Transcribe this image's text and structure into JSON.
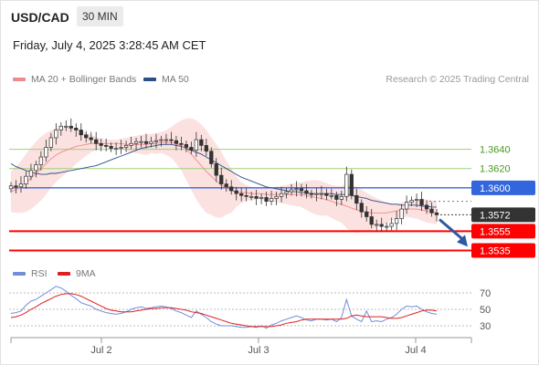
{
  "header": {
    "symbol": "USD/CAD",
    "interval": "30 MIN",
    "datetime": "Friday, July 4, 2025 3:28:45 AM CET",
    "source": "Research © 2025 Trading Central"
  },
  "legend": {
    "items": [
      {
        "label": "MA 20 + Bollinger Bands",
        "color": "#f08a8a"
      },
      {
        "label": "MA 50",
        "color": "#2b4f86"
      }
    ]
  },
  "rsi_legend": {
    "items": [
      {
        "label": "RSI",
        "color": "#6f8fd8"
      },
      {
        "label": "9MA",
        "color": "#e02020"
      }
    ]
  },
  "chart_data": {
    "type": "candlestick",
    "x_ticks": [
      "Jul 2",
      "Jul 3",
      "Jul 4"
    ],
    "price_ylim": [
      1.3525,
      1.3705
    ],
    "closes": [
      1.3602,
      1.3601,
      1.3604,
      1.3612,
      1.3618,
      1.3624,
      1.3632,
      1.3642,
      1.3652,
      1.366,
      1.3664,
      1.3664,
      1.3662,
      1.366,
      1.3655,
      1.3652,
      1.365,
      1.3646,
      1.3644,
      1.3643,
      1.3641,
      1.3641,
      1.3642,
      1.3644,
      1.3646,
      1.3648,
      1.3648,
      1.3646,
      1.3648,
      1.3649,
      1.365,
      1.365,
      1.3649,
      1.3646,
      1.3645,
      1.3642,
      1.3639,
      1.365,
      1.3644,
      1.3638,
      1.3625,
      1.3613,
      1.3604,
      1.3601,
      1.3597,
      1.3594,
      1.3592,
      1.3591,
      1.3591,
      1.3589,
      1.359,
      1.3586,
      1.3589,
      1.3591,
      1.3594,
      1.3596,
      1.3598,
      1.3599,
      1.3597,
      1.3594,
      1.3593,
      1.3594,
      1.3594,
      1.3592,
      1.3592,
      1.3588,
      1.3591,
      1.3614,
      1.3592,
      1.3584,
      1.3575,
      1.357,
      1.3562,
      1.3562,
      1.356,
      1.356,
      1.3563,
      1.3568,
      1.3578,
      1.3585,
      1.3587,
      1.3588,
      1.3582,
      1.3578,
      1.3574,
      1.3572
    ],
    "ma20": [
      1.3596,
      1.3598,
      1.3601,
      1.3605,
      1.361,
      1.3615,
      1.362,
      1.3625,
      1.363,
      1.3634,
      1.3637,
      1.3639,
      1.3641,
      1.3643,
      1.3644,
      1.3645,
      1.3646,
      1.3646,
      1.3646,
      1.3646,
      1.3646,
      1.3646,
      1.3646,
      1.3645,
      1.3645,
      1.3645,
      1.3645,
      1.3645,
      1.3646,
      1.3646,
      1.3647,
      1.3647,
      1.3647,
      1.3646,
      1.3644,
      1.364,
      1.3635,
      1.3629,
      1.3623,
      1.3617,
      1.3612,
      1.3607,
      1.3603,
      1.36,
      1.3597,
      1.3596,
      1.3595,
      1.3595,
      1.3594,
      1.3594,
      1.3594,
      1.3593,
      1.3593,
      1.3593,
      1.3593,
      1.3593,
      1.3593,
      1.3593,
      1.3593,
      1.3592,
      1.3591,
      1.359,
      1.3589,
      1.3588,
      1.3586,
      1.3584,
      1.3583,
      1.3581,
      1.3579,
      1.3577,
      1.3576,
      1.3575,
      1.3574,
      1.3574,
      1.3574,
      1.3574,
      1.3575,
      1.3576,
      1.3577,
      1.3578,
      1.3578,
      1.3578,
      1.3577,
      1.3576,
      1.3575,
      1.3574
    ],
    "bb_upper": [
      1.3617,
      1.3622,
      1.3628,
      1.3635,
      1.3642,
      1.3648,
      1.3653,
      1.3657,
      1.366,
      1.3662,
      1.3663,
      1.3663,
      1.3662,
      1.3661,
      1.3659,
      1.3657,
      1.3655,
      1.3653,
      1.3651,
      1.365,
      1.365,
      1.365,
      1.3651,
      1.3652,
      1.3653,
      1.3654,
      1.3655,
      1.3656,
      1.3656,
      1.3657,
      1.3658,
      1.366,
      1.3663,
      1.3667,
      1.367,
      1.3672,
      1.3672,
      1.367,
      1.3666,
      1.366,
      1.3652,
      1.3645,
      1.3637,
      1.3628,
      1.362,
      1.3612,
      1.3606,
      1.3603,
      1.3601,
      1.36,
      1.36,
      1.36,
      1.36,
      1.3601,
      1.3602,
      1.3603,
      1.3604,
      1.3605,
      1.3606,
      1.3607,
      1.3608,
      1.3608,
      1.3607,
      1.3605,
      1.3603,
      1.3602,
      1.3602,
      1.3604,
      1.3603,
      1.3601,
      1.3598,
      1.3595,
      1.3592,
      1.3589,
      1.3587,
      1.3585,
      1.3584,
      1.3584,
      1.3585,
      1.3586,
      1.3587,
      1.3588,
      1.3588,
      1.3588,
      1.3587,
      1.3586
    ],
    "bb_lower": [
      1.3575,
      1.3574,
      1.3574,
      1.3575,
      1.3578,
      1.3582,
      1.3587,
      1.3593,
      1.36,
      1.3606,
      1.3611,
      1.3615,
      1.362,
      1.3625,
      1.3629,
      1.3633,
      1.3637,
      1.3639,
      1.3641,
      1.3642,
      1.3642,
      1.3642,
      1.3641,
      1.3638,
      1.3637,
      1.3636,
      1.3635,
      1.3634,
      1.3636,
      1.3635,
      1.3636,
      1.3634,
      1.3631,
      1.3625,
      1.3618,
      1.3608,
      1.3598,
      1.3588,
      1.358,
      1.3574,
      1.3572,
      1.3569,
      1.3569,
      1.3572,
      1.3574,
      1.358,
      1.3584,
      1.3587,
      1.3587,
      1.3588,
      1.3588,
      1.3586,
      1.3586,
      1.3585,
      1.3584,
      1.3583,
      1.3582,
      1.3581,
      1.358,
      1.3577,
      1.3574,
      1.3572,
      1.3571,
      1.3571,
      1.3569,
      1.3566,
      1.3564,
      1.3558,
      1.3555,
      1.3553,
      1.3554,
      1.3555,
      1.3556,
      1.3559,
      1.3561,
      1.3563,
      1.3566,
      1.3568,
      1.3569,
      1.357,
      1.3569,
      1.3568,
      1.3566,
      1.3564,
      1.3563,
      1.3562
    ],
    "ma50": [
      1.3625,
      1.3622,
      1.362,
      1.3618,
      1.3616,
      1.3615,
      1.3614,
      1.3614,
      1.3615,
      1.3615,
      1.3616,
      1.3617,
      1.3618,
      1.3619,
      1.362,
      1.3621,
      1.3622,
      1.3623,
      1.3625,
      1.3627,
      1.3629,
      1.3631,
      1.3633,
      1.3635,
      1.3637,
      1.3639,
      1.3641,
      1.3642,
      1.3643,
      1.3644,
      1.3645,
      1.3645,
      1.3645,
      1.3644,
      1.3643,
      1.3641,
      1.3639,
      1.3637,
      1.3635,
      1.3632,
      1.3629,
      1.3626,
      1.3623,
      1.362,
      1.3617,
      1.3614,
      1.3611,
      1.3609,
      1.3607,
      1.3605,
      1.3603,
      1.3601,
      1.36,
      1.3599,
      1.3598,
      1.3597,
      1.3596,
      1.3596,
      1.3595,
      1.3595,
      1.3594,
      1.3594,
      1.3594,
      1.3594,
      1.3594,
      1.3593,
      1.3593,
      1.3593,
      1.3592,
      1.3591,
      1.359,
      1.3589,
      1.3587,
      1.3586,
      1.3585,
      1.3584,
      1.3583,
      1.3583,
      1.3582,
      1.3582,
      1.3582,
      1.3582,
      1.3581,
      1.3581,
      1.358,
      1.358
    ],
    "levels": [
      {
        "value": 1.364,
        "label": "1.3640",
        "type": "resistance"
      },
      {
        "value": 1.362,
        "label": "1.3620",
        "type": "resistance"
      },
      {
        "value": 1.36,
        "label": "1.3600",
        "type": "pivot"
      },
      {
        "value": 1.3555,
        "label": "1.3555",
        "type": "support"
      },
      {
        "value": 1.3535,
        "label": "1.3535",
        "type": "support"
      }
    ],
    "last_price": {
      "value": 1.3572,
      "label": "1.3572"
    },
    "forecast_arrow": {
      "from": 1.3572,
      "to": 1.3537
    },
    "rsi": {
      "ylim": [
        20,
        80
      ],
      "ticks": [
        {
          "value": 70,
          "label": "70"
        },
        {
          "value": 50,
          "label": "50"
        },
        {
          "value": 30,
          "label": "30"
        }
      ],
      "values": [
        45,
        46,
        48,
        55,
        60,
        62,
        66,
        70,
        74,
        78,
        76,
        72,
        67,
        63,
        58,
        56,
        54,
        50,
        48,
        46,
        45,
        44,
        45,
        47,
        50,
        52,
        53,
        51,
        52,
        53,
        54,
        53,
        51,
        48,
        46,
        43,
        40,
        48,
        44,
        40,
        35,
        32,
        30,
        30,
        30,
        29,
        28,
        28,
        29,
        28,
        30,
        27,
        31,
        33,
        36,
        38,
        40,
        42,
        40,
        37,
        36,
        38,
        38,
        37,
        38,
        35,
        40,
        62,
        42,
        38,
        35,
        48,
        35,
        36,
        35,
        38,
        40,
        44,
        50,
        54,
        53,
        54,
        50,
        47,
        45,
        44
      ],
      "ma9": [
        40,
        41,
        43,
        46,
        50,
        53,
        57,
        60,
        63,
        66,
        68,
        69,
        69,
        68,
        66,
        63,
        60,
        57,
        54,
        51,
        49,
        48,
        47,
        47,
        47,
        48,
        49,
        50,
        51,
        51,
        52,
        52,
        52,
        51,
        50,
        49,
        47,
        46,
        45,
        43,
        41,
        39,
        37,
        35,
        33,
        32,
        31,
        30,
        29,
        29,
        29,
        29,
        29,
        30,
        31,
        33,
        34,
        35,
        37,
        38,
        38,
        38,
        38,
        38,
        38,
        38,
        38,
        39,
        42,
        43,
        42,
        41,
        41,
        41,
        41,
        40,
        39,
        39,
        40,
        42,
        44,
        46,
        48,
        49,
        49,
        48
      ]
    }
  }
}
